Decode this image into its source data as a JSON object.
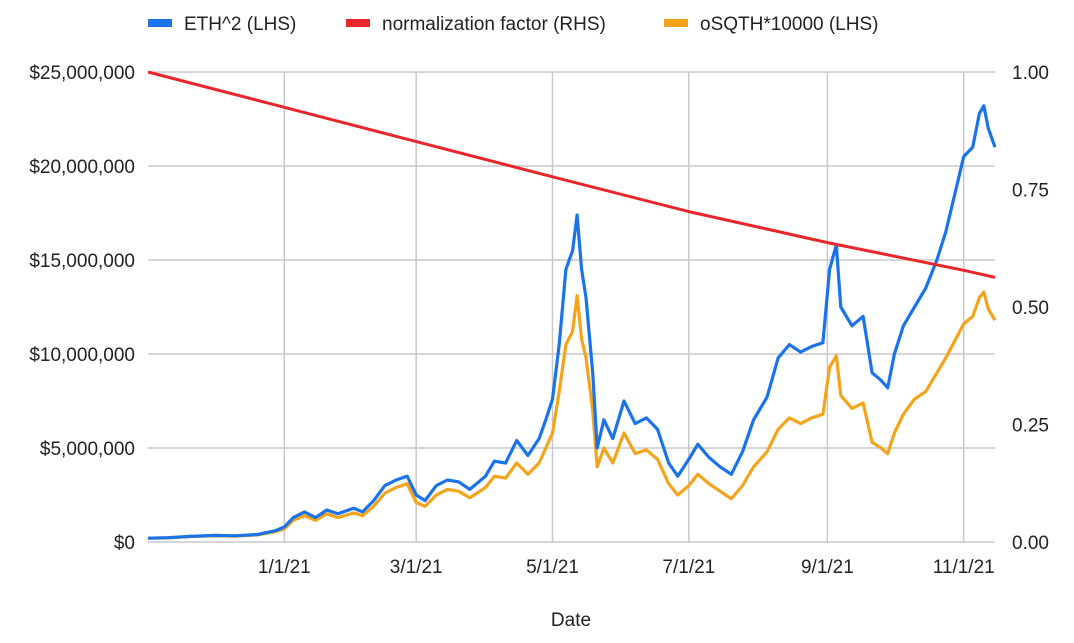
{
  "chart_data": {
    "type": "line",
    "title": "",
    "xlabel": "Date",
    "ylabel_left": "",
    "ylabel_right": "",
    "legend_position": "top",
    "grid": true,
    "x_range": [
      "2020-11-01",
      "2021-11-15"
    ],
    "x_ticks": [
      {
        "date": "2021-01-01",
        "label": "1/1/21"
      },
      {
        "date": "2021-03-01",
        "label": "3/1/21"
      },
      {
        "date": "2021-05-01",
        "label": "5/1/21"
      },
      {
        "date": "2021-07-01",
        "label": "7/1/21"
      },
      {
        "date": "2021-09-01",
        "label": "9/1/21"
      },
      {
        "date": "2021-11-01",
        "label": "11/1/21"
      }
    ],
    "y_left": {
      "range": [
        0,
        25000000
      ],
      "ticks": [
        {
          "value": 0,
          "label": "$0"
        },
        {
          "value": 5000000,
          "label": "$5,000,000"
        },
        {
          "value": 10000000,
          "label": "$10,000,000"
        },
        {
          "value": 15000000,
          "label": "$15,000,000"
        },
        {
          "value": 20000000,
          "label": "$20,000,000"
        },
        {
          "value": 25000000,
          "label": "$25,000,000"
        }
      ]
    },
    "y_right": {
      "range": [
        0,
        1
      ],
      "ticks": [
        {
          "value": 0,
          "label": "0.00"
        },
        {
          "value": 0.25,
          "label": "0.25"
        },
        {
          "value": 0.5,
          "label": "0.50"
        },
        {
          "value": 0.75,
          "label": "0.75"
        },
        {
          "value": 1,
          "label": "1.00"
        }
      ]
    },
    "series": [
      {
        "name": "ETH^2 (LHS)",
        "axis": "left",
        "color": "#1a73e8",
        "points": [
          [
            "2020-11-01",
            200000
          ],
          [
            "2020-11-10",
            230000
          ],
          [
            "2020-11-20",
            300000
          ],
          [
            "2020-12-01",
            350000
          ],
          [
            "2020-12-10",
            330000
          ],
          [
            "2020-12-20",
            400000
          ],
          [
            "2020-12-28",
            600000
          ],
          [
            "2021-01-01",
            800000
          ],
          [
            "2021-01-05",
            1300000
          ],
          [
            "2021-01-10",
            1600000
          ],
          [
            "2021-01-15",
            1300000
          ],
          [
            "2021-01-20",
            1700000
          ],
          [
            "2021-01-25",
            1500000
          ],
          [
            "2021-02-01",
            1800000
          ],
          [
            "2021-02-05",
            1600000
          ],
          [
            "2021-02-10",
            2200000
          ],
          [
            "2021-02-15",
            3000000
          ],
          [
            "2021-02-20",
            3300000
          ],
          [
            "2021-02-25",
            3500000
          ],
          [
            "2021-03-01",
            2500000
          ],
          [
            "2021-03-05",
            2200000
          ],
          [
            "2021-03-10",
            3000000
          ],
          [
            "2021-03-15",
            3300000
          ],
          [
            "2021-03-20",
            3200000
          ],
          [
            "2021-03-25",
            2800000
          ],
          [
            "2021-04-01",
            3500000
          ],
          [
            "2021-04-05",
            4300000
          ],
          [
            "2021-04-10",
            4200000
          ],
          [
            "2021-04-15",
            5400000
          ],
          [
            "2021-04-20",
            4600000
          ],
          [
            "2021-04-25",
            5500000
          ],
          [
            "2021-04-28",
            6500000
          ],
          [
            "2021-05-01",
            7600000
          ],
          [
            "2021-05-04",
            10500000
          ],
          [
            "2021-05-07",
            14500000
          ],
          [
            "2021-05-10",
            15500000
          ],
          [
            "2021-05-12",
            17400000
          ],
          [
            "2021-05-14",
            14500000
          ],
          [
            "2021-05-16",
            13000000
          ],
          [
            "2021-05-19",
            9000000
          ],
          [
            "2021-05-21",
            5000000
          ],
          [
            "2021-05-24",
            6500000
          ],
          [
            "2021-05-28",
            5500000
          ],
          [
            "2021-06-02",
            7500000
          ],
          [
            "2021-06-07",
            6300000
          ],
          [
            "2021-06-12",
            6600000
          ],
          [
            "2021-06-17",
            6000000
          ],
          [
            "2021-06-22",
            4200000
          ],
          [
            "2021-06-26",
            3500000
          ],
          [
            "2021-07-01",
            4400000
          ],
          [
            "2021-07-05",
            5200000
          ],
          [
            "2021-07-10",
            4500000
          ],
          [
            "2021-07-15",
            4000000
          ],
          [
            "2021-07-20",
            3600000
          ],
          [
            "2021-07-25",
            4800000
          ],
          [
            "2021-07-30",
            6500000
          ],
          [
            "2021-08-05",
            7700000
          ],
          [
            "2021-08-10",
            9800000
          ],
          [
            "2021-08-15",
            10500000
          ],
          [
            "2021-08-20",
            10100000
          ],
          [
            "2021-08-25",
            10400000
          ],
          [
            "2021-08-30",
            10600000
          ],
          [
            "2021-09-02",
            14500000
          ],
          [
            "2021-09-05",
            15800000
          ],
          [
            "2021-09-07",
            12500000
          ],
          [
            "2021-09-12",
            11500000
          ],
          [
            "2021-09-17",
            12000000
          ],
          [
            "2021-09-21",
            9000000
          ],
          [
            "2021-09-25",
            8600000
          ],
          [
            "2021-09-28",
            8200000
          ],
          [
            "2021-10-01",
            10000000
          ],
          [
            "2021-10-05",
            11500000
          ],
          [
            "2021-10-10",
            12500000
          ],
          [
            "2021-10-15",
            13500000
          ],
          [
            "2021-10-20",
            15000000
          ],
          [
            "2021-10-24",
            16500000
          ],
          [
            "2021-10-28",
            18500000
          ],
          [
            "2021-11-01",
            20500000
          ],
          [
            "2021-11-05",
            21000000
          ],
          [
            "2021-11-08",
            22800000
          ],
          [
            "2021-11-10",
            23200000
          ],
          [
            "2021-11-12",
            22000000
          ],
          [
            "2021-11-15",
            21000000
          ]
        ]
      },
      {
        "name": "normalization factor (RHS)",
        "axis": "right",
        "color": "#e8262b",
        "points": [
          [
            "2020-11-01",
            1.0
          ],
          [
            "2021-01-01",
            0.925
          ],
          [
            "2021-03-01",
            0.852
          ],
          [
            "2021-05-01",
            0.777
          ],
          [
            "2021-07-01",
            0.703
          ],
          [
            "2021-09-01",
            0.637
          ],
          [
            "2021-11-01",
            0.578
          ],
          [
            "2021-11-15",
            0.563
          ]
        ]
      },
      {
        "name": "oSQTH*10000 (LHS)",
        "axis": "left",
        "color": "#f4a41a",
        "points": [
          [
            "2020-11-01",
            200000
          ],
          [
            "2020-11-10",
            220000
          ],
          [
            "2020-11-20",
            290000
          ],
          [
            "2020-12-01",
            330000
          ],
          [
            "2020-12-10",
            310000
          ],
          [
            "2020-12-20",
            380000
          ],
          [
            "2020-12-28",
            550000
          ],
          [
            "2021-01-01",
            700000
          ],
          [
            "2021-01-05",
            1150000
          ],
          [
            "2021-01-10",
            1400000
          ],
          [
            "2021-01-15",
            1150000
          ],
          [
            "2021-01-20",
            1500000
          ],
          [
            "2021-01-25",
            1300000
          ],
          [
            "2021-02-01",
            1550000
          ],
          [
            "2021-02-05",
            1400000
          ],
          [
            "2021-02-10",
            1900000
          ],
          [
            "2021-02-15",
            2600000
          ],
          [
            "2021-02-20",
            2900000
          ],
          [
            "2021-02-25",
            3100000
          ],
          [
            "2021-03-01",
            2100000
          ],
          [
            "2021-03-05",
            1900000
          ],
          [
            "2021-03-10",
            2500000
          ],
          [
            "2021-03-15",
            2800000
          ],
          [
            "2021-03-20",
            2700000
          ],
          [
            "2021-03-25",
            2350000
          ],
          [
            "2021-04-01",
            2900000
          ],
          [
            "2021-04-05",
            3500000
          ],
          [
            "2021-04-10",
            3400000
          ],
          [
            "2021-04-15",
            4200000
          ],
          [
            "2021-04-20",
            3600000
          ],
          [
            "2021-04-25",
            4200000
          ],
          [
            "2021-04-28",
            5000000
          ],
          [
            "2021-05-01",
            5800000
          ],
          [
            "2021-05-04",
            8000000
          ],
          [
            "2021-05-07",
            10500000
          ],
          [
            "2021-05-10",
            11200000
          ],
          [
            "2021-05-12",
            13100000
          ],
          [
            "2021-05-14",
            10800000
          ],
          [
            "2021-05-16",
            9800000
          ],
          [
            "2021-05-19",
            7000000
          ],
          [
            "2021-05-21",
            4000000
          ],
          [
            "2021-05-24",
            5000000
          ],
          [
            "2021-05-28",
            4200000
          ],
          [
            "2021-06-02",
            5800000
          ],
          [
            "2021-06-07",
            4700000
          ],
          [
            "2021-06-12",
            4900000
          ],
          [
            "2021-06-17",
            4400000
          ],
          [
            "2021-06-22",
            3100000
          ],
          [
            "2021-06-26",
            2500000
          ],
          [
            "2021-07-01",
            3000000
          ],
          [
            "2021-07-05",
            3600000
          ],
          [
            "2021-07-10",
            3100000
          ],
          [
            "2021-07-15",
            2700000
          ],
          [
            "2021-07-20",
            2300000
          ],
          [
            "2021-07-25",
            3000000
          ],
          [
            "2021-07-30",
            4000000
          ],
          [
            "2021-08-05",
            4800000
          ],
          [
            "2021-08-10",
            6000000
          ],
          [
            "2021-08-15",
            6600000
          ],
          [
            "2021-08-20",
            6300000
          ],
          [
            "2021-08-25",
            6600000
          ],
          [
            "2021-08-30",
            6800000
          ],
          [
            "2021-09-02",
            9300000
          ],
          [
            "2021-09-05",
            9900000
          ],
          [
            "2021-09-07",
            7800000
          ],
          [
            "2021-09-12",
            7100000
          ],
          [
            "2021-09-17",
            7400000
          ],
          [
            "2021-09-21",
            5300000
          ],
          [
            "2021-09-25",
            5000000
          ],
          [
            "2021-09-28",
            4700000
          ],
          [
            "2021-10-01",
            5800000
          ],
          [
            "2021-10-05",
            6800000
          ],
          [
            "2021-10-10",
            7600000
          ],
          [
            "2021-10-15",
            8000000
          ],
          [
            "2021-10-20",
            9000000
          ],
          [
            "2021-10-24",
            9800000
          ],
          [
            "2021-10-28",
            10700000
          ],
          [
            "2021-11-01",
            11600000
          ],
          [
            "2021-11-05",
            12000000
          ],
          [
            "2021-11-08",
            13000000
          ],
          [
            "2021-11-10",
            13300000
          ],
          [
            "2021-11-12",
            12400000
          ],
          [
            "2021-11-15",
            11800000
          ]
        ]
      }
    ]
  }
}
